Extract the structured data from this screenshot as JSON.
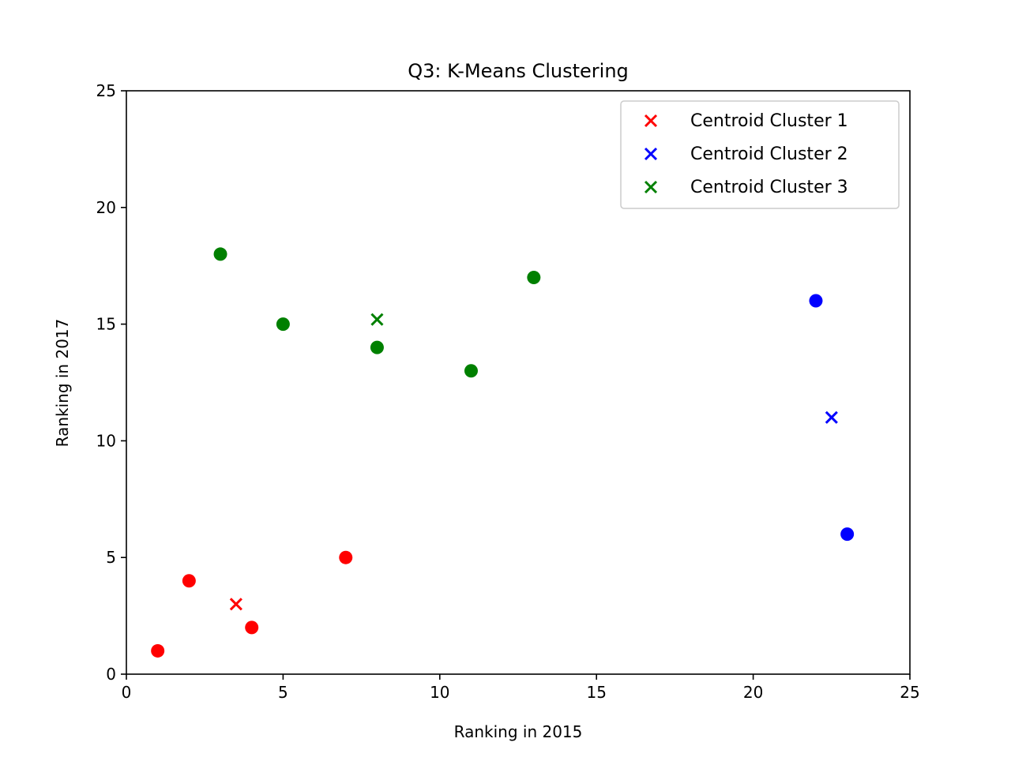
{
  "chart_data": {
    "type": "scatter",
    "title": "Q3: K-Means Clustering",
    "xlabel": "Ranking in 2015",
    "ylabel": "Ranking in 2017",
    "xlim": [
      0,
      25
    ],
    "ylim": [
      0,
      25
    ],
    "xticks": [
      "0",
      "5",
      "10",
      "15",
      "20",
      "25"
    ],
    "yticks": [
      "0",
      "5",
      "10",
      "15",
      "20",
      "25"
    ],
    "grid": false,
    "legend_position": "top-right",
    "clusters": [
      {
        "color": "#ff0000",
        "points": [
          {
            "x": 1,
            "y": 1
          },
          {
            "x": 2,
            "y": 4
          },
          {
            "x": 4,
            "y": 2
          },
          {
            "x": 7,
            "y": 5
          }
        ],
        "centroid": {
          "name": "Centroid Cluster 1",
          "x": 3.5,
          "y": 3
        }
      },
      {
        "color": "#0000ff",
        "points": [
          {
            "x": 22,
            "y": 16
          },
          {
            "x": 23,
            "y": 6
          }
        ],
        "centroid": {
          "name": "Centroid Cluster 2",
          "x": 22.5,
          "y": 11
        }
      },
      {
        "color": "#008000",
        "points": [
          {
            "x": 3,
            "y": 18
          },
          {
            "x": 5,
            "y": 15
          },
          {
            "x": 8,
            "y": 14
          },
          {
            "x": 11,
            "y": 13
          },
          {
            "x": 13,
            "y": 17
          }
        ],
        "centroid": {
          "name": "Centroid Cluster 3",
          "x": 8,
          "y": 15.2
        }
      }
    ]
  }
}
